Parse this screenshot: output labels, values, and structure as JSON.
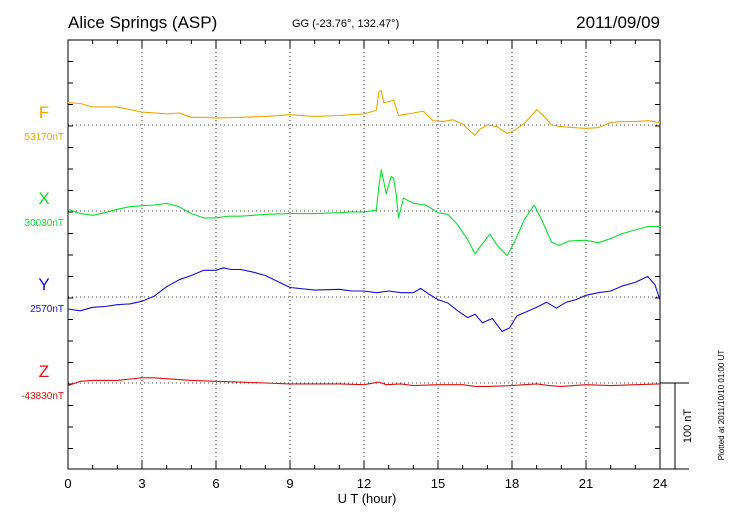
{
  "header": {
    "station": "Alice Springs (ASP)",
    "coords": "GG (-23.76°, 132.47°)",
    "date": "2011/09/09"
  },
  "chart_data": {
    "type": "line",
    "xlabel": "U T (hour)",
    "xlim": [
      0,
      24
    ],
    "xticks": [
      "0",
      "3",
      "6",
      "9",
      "12",
      "15",
      "18",
      "21",
      "24"
    ],
    "scale_bar_label": "100 nT",
    "scale_bar_nT": 100,
    "footnote": "Plotted at 2011/10/10 01:00 UT",
    "series": [
      {
        "name": "F",
        "baseline_label": "53170nT",
        "color": "#f0a800",
        "baseline_nT": 53170,
        "points": [
          [
            0,
            26
          ],
          [
            0.5,
            25
          ],
          [
            1,
            21
          ],
          [
            1.5,
            21
          ],
          [
            2,
            21
          ],
          [
            3,
            15
          ],
          [
            4,
            13
          ],
          [
            4.5,
            14
          ],
          [
            5,
            9
          ],
          [
            5.5,
            9
          ],
          [
            6,
            8
          ],
          [
            7,
            9
          ],
          [
            8,
            10
          ],
          [
            9,
            12
          ],
          [
            10,
            10
          ],
          [
            11,
            11
          ],
          [
            11.5,
            12
          ],
          [
            12,
            13
          ],
          [
            12.5,
            17
          ],
          [
            12.6,
            38
          ],
          [
            12.7,
            40
          ],
          [
            12.8,
            26
          ],
          [
            13,
            27
          ],
          [
            13.2,
            29
          ],
          [
            13.4,
            11
          ],
          [
            13.6,
            12
          ],
          [
            14,
            14
          ],
          [
            14.4,
            16
          ],
          [
            14.8,
            5
          ],
          [
            15.2,
            4
          ],
          [
            15.6,
            6
          ],
          [
            16,
            1
          ],
          [
            16.3,
            -7
          ],
          [
            16.5,
            -12
          ],
          [
            16.7,
            -5
          ],
          [
            17,
            0
          ],
          [
            17.4,
            -2
          ],
          [
            17.8,
            -10
          ],
          [
            18.1,
            -6
          ],
          [
            18.5,
            2
          ],
          [
            18.8,
            11
          ],
          [
            19,
            18
          ],
          [
            19.3,
            10
          ],
          [
            19.6,
            0
          ],
          [
            20,
            -2
          ],
          [
            20.5,
            -3
          ],
          [
            21,
            -4
          ],
          [
            21.5,
            -3
          ],
          [
            22,
            3
          ],
          [
            22.5,
            4
          ],
          [
            23,
            4
          ],
          [
            23.5,
            5
          ],
          [
            24,
            3
          ]
        ]
      },
      {
        "name": "X",
        "baseline_label": "30030nT",
        "color": "#11dd33",
        "baseline_nT": 30030,
        "points": [
          [
            0,
            2
          ],
          [
            0.5,
            -3
          ],
          [
            1,
            -5
          ],
          [
            1.5,
            -2
          ],
          [
            2,
            2
          ],
          [
            2.5,
            5
          ],
          [
            3,
            6
          ],
          [
            3.5,
            7
          ],
          [
            4,
            9
          ],
          [
            4.5,
            5
          ],
          [
            5,
            -3
          ],
          [
            5.5,
            -8
          ],
          [
            6,
            -8
          ],
          [
            6.5,
            -6
          ],
          [
            7,
            -6
          ],
          [
            8,
            -4
          ],
          [
            9,
            -3
          ],
          [
            10,
            -3
          ],
          [
            11,
            -2
          ],
          [
            11.5,
            -1
          ],
          [
            12,
            -1
          ],
          [
            12.5,
            1
          ],
          [
            12.6,
            28
          ],
          [
            12.7,
            48
          ],
          [
            12.9,
            20
          ],
          [
            13.1,
            40
          ],
          [
            13.2,
            38
          ],
          [
            13.3,
            20
          ],
          [
            13.4,
            -8
          ],
          [
            13.6,
            15
          ],
          [
            14,
            9
          ],
          [
            14.5,
            7
          ],
          [
            15,
            -2
          ],
          [
            15.4,
            -4
          ],
          [
            15.8,
            -16
          ],
          [
            16.2,
            -33
          ],
          [
            16.5,
            -50
          ],
          [
            16.8,
            -38
          ],
          [
            17.1,
            -27
          ],
          [
            17.4,
            -40
          ],
          [
            17.8,
            -52
          ],
          [
            18.1,
            -36
          ],
          [
            18.5,
            -10
          ],
          [
            18.9,
            7
          ],
          [
            19.2,
            -10
          ],
          [
            19.6,
            -36
          ],
          [
            19.9,
            -40
          ],
          [
            20.3,
            -35
          ],
          [
            21,
            -34
          ],
          [
            21.5,
            -37
          ],
          [
            22,
            -32
          ],
          [
            22.5,
            -26
          ],
          [
            23,
            -22
          ],
          [
            23.5,
            -18
          ],
          [
            24,
            -18
          ]
        ]
      },
      {
        "name": "Y",
        "baseline_label": "2570nT",
        "color": "#1111cc",
        "baseline_nT": 2570,
        "points": [
          [
            0,
            -14
          ],
          [
            0.5,
            -16
          ],
          [
            1,
            -12
          ],
          [
            1.5,
            -11
          ],
          [
            2,
            -9
          ],
          [
            2.5,
            -8
          ],
          [
            3,
            -5
          ],
          [
            3.5,
            1
          ],
          [
            4,
            12
          ],
          [
            4.5,
            20
          ],
          [
            5,
            25
          ],
          [
            5.5,
            31
          ],
          [
            6,
            31
          ],
          [
            6.3,
            34
          ],
          [
            6.6,
            32
          ],
          [
            7,
            32
          ],
          [
            7.5,
            29
          ],
          [
            8,
            25
          ],
          [
            8.5,
            18
          ],
          [
            9,
            11
          ],
          [
            10,
            8
          ],
          [
            11,
            9
          ],
          [
            11.5,
            7
          ],
          [
            12,
            7
          ],
          [
            12.5,
            5
          ],
          [
            13,
            7
          ],
          [
            13.5,
            5
          ],
          [
            14,
            5
          ],
          [
            14.3,
            10
          ],
          [
            14.6,
            4
          ],
          [
            15,
            -3
          ],
          [
            15.4,
            -7
          ],
          [
            15.8,
            -16
          ],
          [
            16.2,
            -24
          ],
          [
            16.5,
            -20
          ],
          [
            16.8,
            -30
          ],
          [
            17.2,
            -25
          ],
          [
            17.6,
            -40
          ],
          [
            17.9,
            -36
          ],
          [
            18.2,
            -22
          ],
          [
            18.6,
            -17
          ],
          [
            19,
            -12
          ],
          [
            19.4,
            -6
          ],
          [
            19.8,
            -13
          ],
          [
            20.2,
            -6
          ],
          [
            20.6,
            -3
          ],
          [
            21,
            2
          ],
          [
            21.5,
            5
          ],
          [
            22,
            7
          ],
          [
            22.5,
            13
          ],
          [
            23,
            17
          ],
          [
            23.5,
            24
          ],
          [
            23.8,
            14
          ],
          [
            24,
            -4
          ]
        ]
      },
      {
        "name": "Z",
        "baseline_label": "-43830nT",
        "color": "#dd1111",
        "baseline_nT": -43830,
        "points": [
          [
            0,
            -3
          ],
          [
            0.5,
            2
          ],
          [
            1,
            3
          ],
          [
            2,
            3
          ],
          [
            3,
            6
          ],
          [
            3.5,
            6
          ],
          [
            4,
            5
          ],
          [
            5,
            3
          ],
          [
            6,
            2
          ],
          [
            7,
            1
          ],
          [
            8,
            0
          ],
          [
            9,
            -1
          ],
          [
            10,
            -1
          ],
          [
            11,
            -1
          ],
          [
            12,
            -2
          ],
          [
            12.6,
            1
          ],
          [
            12.9,
            -2
          ],
          [
            13.5,
            -1
          ],
          [
            14,
            -3
          ],
          [
            15,
            -2
          ],
          [
            16,
            -2
          ],
          [
            16.5,
            -4
          ],
          [
            17,
            -4
          ],
          [
            18,
            -3
          ],
          [
            18.5,
            -2
          ],
          [
            19,
            -1
          ],
          [
            19.5,
            -3
          ],
          [
            20,
            -4
          ],
          [
            21,
            -2
          ],
          [
            22,
            -3
          ],
          [
            23,
            -2
          ],
          [
            24,
            -1
          ]
        ]
      }
    ]
  }
}
